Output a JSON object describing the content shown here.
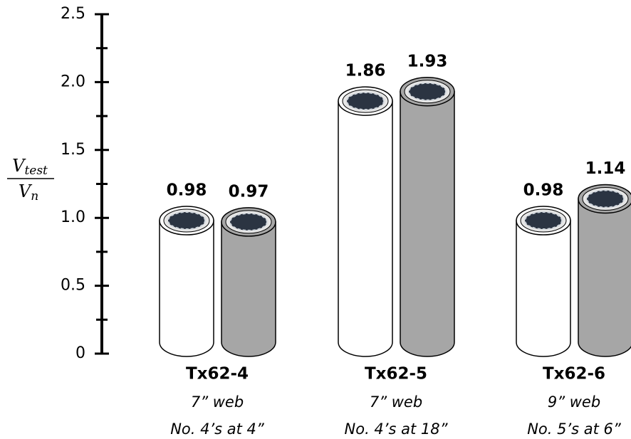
{
  "chart_data": {
    "type": "bar",
    "ylabel": {
      "numerator": "V",
      "numerator_sub": "test",
      "denominator": "V",
      "denominator_sub": "n"
    },
    "categories": [
      "Tx62-4",
      "Tx62-5",
      "Tx62-6"
    ],
    "category_details": [
      [
        "7” web",
        "No. 4’s at 4”"
      ],
      [
        "7” web",
        "No. 4’s at 18”"
      ],
      [
        "9” web",
        "No. 5’s at 6”"
      ]
    ],
    "series": [
      {
        "color": "#ffffff",
        "values": [
          0.98,
          1.86,
          0.98
        ]
      },
      {
        "color": "#a6a6a6",
        "values": [
          0.97,
          1.93,
          1.14
        ]
      }
    ],
    "ylim": [
      0,
      2.5
    ],
    "yticks": [
      0,
      0.5,
      {
        "value": 1,
        "label": "1.0"
      },
      1.5,
      {
        "value": 2,
        "label": "2.0"
      },
      2.5
    ],
    "minor_yticks": [
      0.25,
      0.75,
      1.25,
      1.75,
      2.25
    ]
  }
}
